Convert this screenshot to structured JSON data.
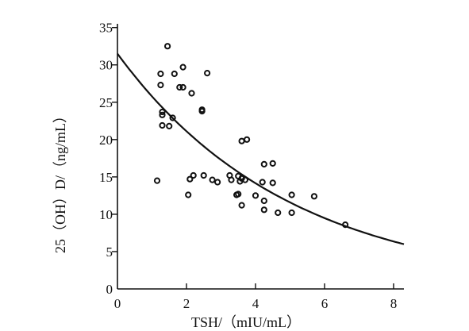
{
  "chart_data": {
    "type": "scatter",
    "xlabel": "TSH/（mIU/mL）",
    "ylabel": "25（OH）D/（ng/mL）",
    "xlim": [
      0,
      8.3
    ],
    "ylim": [
      0,
      35.5
    ],
    "x_ticks": [
      0,
      2,
      4,
      6,
      8
    ],
    "y_ticks": [
      0,
      5,
      10,
      15,
      20,
      25,
      30,
      35
    ],
    "grid": false,
    "legend": "none",
    "marker": "open-circle",
    "colors": {
      "axis": "#111111",
      "points": "#111111",
      "curve": "#111111"
    },
    "series": [
      {
        "points": [
          [
            1.15,
            14.5
          ],
          [
            1.25,
            28.8
          ],
          [
            1.25,
            27.3
          ],
          [
            1.3,
            23.7
          ],
          [
            1.3,
            23.3
          ],
          [
            1.3,
            21.9
          ],
          [
            1.45,
            32.5
          ],
          [
            1.5,
            21.8
          ],
          [
            1.6,
            22.9
          ],
          [
            1.65,
            28.8
          ],
          [
            1.8,
            27.0
          ],
          [
            1.9,
            27.0
          ],
          [
            1.9,
            29.7
          ],
          [
            2.05,
            12.6
          ],
          [
            2.1,
            14.7
          ],
          [
            2.15,
            26.2
          ],
          [
            2.2,
            15.2
          ],
          [
            2.45,
            24.0
          ],
          [
            2.45,
            23.8
          ],
          [
            2.5,
            15.2
          ],
          [
            2.6,
            28.9
          ],
          [
            2.75,
            14.6
          ],
          [
            2.9,
            14.3
          ],
          [
            3.25,
            15.2
          ],
          [
            3.3,
            14.6
          ],
          [
            3.45,
            12.6
          ],
          [
            3.5,
            15.1
          ],
          [
            3.5,
            12.7
          ],
          [
            3.55,
            14.4
          ],
          [
            3.6,
            14.8
          ],
          [
            3.6,
            19.8
          ],
          [
            3.6,
            11.2
          ],
          [
            3.7,
            14.6
          ],
          [
            3.75,
            20.0
          ],
          [
            4.0,
            12.5
          ],
          [
            4.2,
            14.3
          ],
          [
            4.25,
            16.7
          ],
          [
            4.25,
            11.8
          ],
          [
            4.25,
            10.6
          ],
          [
            4.5,
            16.8
          ],
          [
            4.5,
            14.2
          ],
          [
            4.65,
            10.2
          ],
          [
            5.05,
            12.6
          ],
          [
            5.05,
            10.2
          ],
          [
            5.7,
            12.4
          ],
          [
            6.6,
            8.6
          ]
        ]
      }
    ],
    "trend": {
      "type": "exponential",
      "a": 31.5,
      "b": -0.2
    }
  }
}
